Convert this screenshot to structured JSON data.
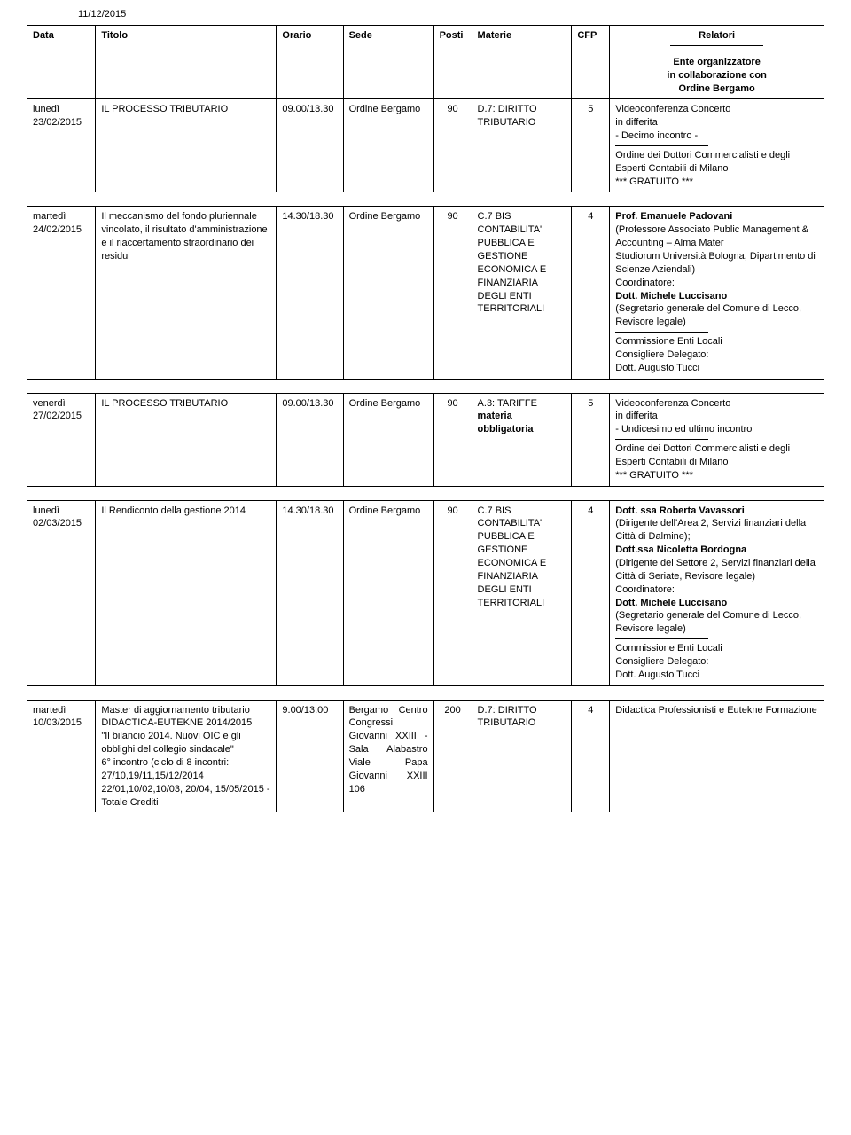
{
  "page_date": "11/12/2015",
  "headers": {
    "data": "Data",
    "titolo": "Titolo",
    "orario": "Orario",
    "sede": "Sede",
    "posti": "Posti",
    "materie": "Materie",
    "cfp": "CFP",
    "relatori": "Relatori",
    "ente": "Ente organizzatore",
    "collab": "in collaborazione con",
    "ordine": "Ordine Bergamo"
  },
  "rows": [
    {
      "data_day": "lunedì",
      "data_date": "23/02/2015",
      "titolo": "IL PROCESSO TRIBUTARIO",
      "orario": "09.00/13.30",
      "sede": "Ordine Bergamo",
      "posti": "90",
      "materie_code": "D.7: DIRITTO",
      "materie_text": "TRIBUTARIO",
      "cfp": "5",
      "rel_top": "Videoconferenza Concerto\nin differita\n - Decimo incontro -",
      "rel_bottom": "Ordine dei Dottori Commercialisti e degli Esperti Contabili di Milano\n*** GRATUITO ***"
    },
    {
      "data_day": "martedì",
      "data_date": "24/02/2015",
      "titolo": "Il meccanismo del fondo pluriennale vincolato, il risultato d'amministrazione e il riaccertamento straordinario dei residui",
      "orario": "14.30/18.30",
      "sede": "Ordine Bergamo",
      "posti": "90",
      "materie_code": "C.7 BIS",
      "materie_text": "CONTABILITA' PUBBLICA E GESTIONE ECONOMICA E FINANZIARIA DEGLI ENTI TERRITORIALI",
      "cfp": "4",
      "rel_top_html": "<span class='bold'>Prof. Emanuele Padovani</span><br>(Professore Associato Public Management & Accounting – Alma Mater<br>Studiorum Università Bologna, Dipartimento di Scienze Aziendali)<br>Coordinatore:<br><span class='bold'>Dott. Michele Luccisano</span><br>(Segretario generale del Comune di Lecco, Revisore legale)",
      "rel_bottom": "Commissione Enti Locali\nConsigliere Delegato:\nDott. Augusto Tucci"
    },
    {
      "data_day": "venerdì",
      "data_date": "27/02/2015",
      "titolo": "IL PROCESSO TRIBUTARIO",
      "orario": "09.00/13.30",
      "sede": "Ordine Bergamo",
      "posti": "90",
      "materie_code": "A.3: TARIFFE",
      "materie_bold": "materia obbligatoria",
      "cfp": "5",
      "rel_top": "Videoconferenza Concerto\nin differita\n - Undicesimo ed ultimo incontro",
      "rel_bottom": "Ordine dei Dottori Commercialisti e degli Esperti Contabili di Milano\n*** GRATUITO ***"
    },
    {
      "data_day": "lunedì",
      "data_date": "02/03/2015",
      "titolo": "Il Rendiconto della gestione 2014",
      "orario": "14.30/18.30",
      "sede": "Ordine Bergamo",
      "posti": "90",
      "materie_code": "C.7 BIS",
      "materie_text": "CONTABILITA' PUBBLICA E GESTIONE ECONOMICA E FINANZIARIA DEGLI ENTI TERRITORIALI",
      "cfp": "4",
      "rel_top_html": "<span class='bold'>Dott. ssa Roberta Vavassori</span><br>(Dirigente dell'Area 2, Servizi finanziari della Città di Dalmine);<br><span class='bold'>Dott.ssa Nicoletta Bordogna</span><br>(Dirigente del Settore 2, Servizi finanziari della Città  di Seriate, Revisore legale)<br>Coordinatore:<br><span class='bold'>Dott. Michele Luccisano</span><br>(Segretario generale del Comune di Lecco, Revisore legale)",
      "rel_bottom": "Commissione Enti Locali\nConsigliere Delegato:\nDott. Augusto Tucci"
    },
    {
      "data_day": "martedì",
      "data_date": "10/03/2015",
      "titolo": "Master di aggiornamento tributario\nDIDACTICA-EUTEKNE 2014/2015\n\"Il bilancio 2014. Nuovi OIC e gli obblighi del collegio sindacale\"\n6° incontro (ciclo di 8 incontri: 27/10,19/11,15/12/2014 22/01,10/02,10/03, 20/04, 15/05/2015 - Totale Crediti",
      "orario": "9.00/13.00",
      "sede": "Bergamo Centro Congressi Giovanni XXIII - Sala Alabastro Viale Papa Giovanni XXIII 106",
      "posti": "200",
      "materie_code": "D.7: DIRITTO",
      "materie_text": "TRIBUTARIO",
      "cfp": "4",
      "rel_top": "Didactica Professionisti e Eutekne Formazione"
    }
  ]
}
